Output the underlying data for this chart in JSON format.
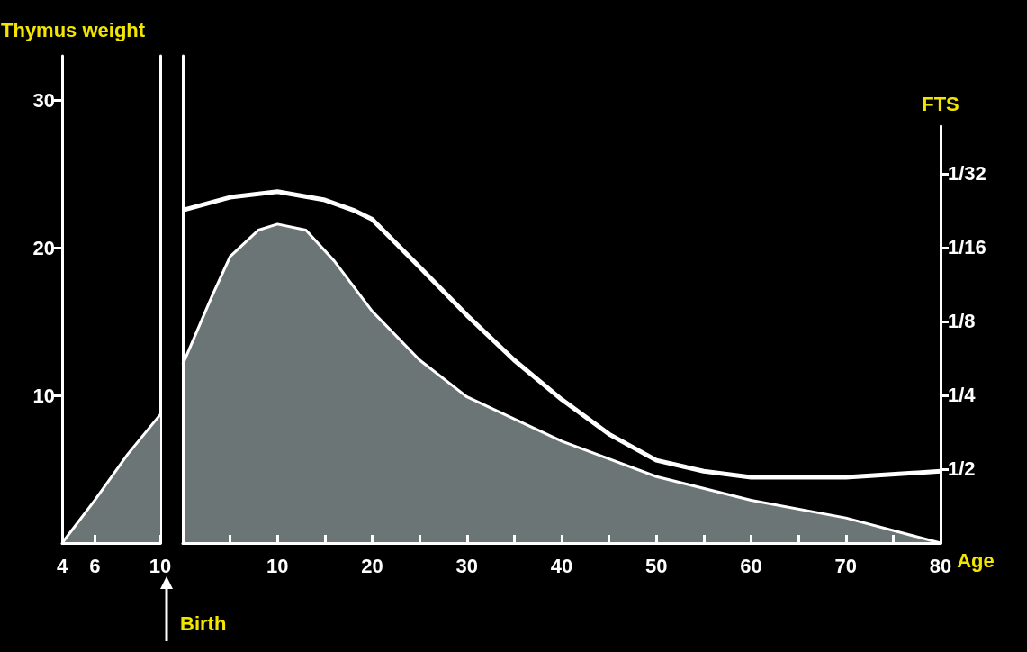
{
  "chart_data": [
    {
      "type": "area",
      "ylabel": "Thymus weight",
      "x": [
        4,
        6,
        8,
        10
      ],
      "xlim": [
        4,
        10
      ],
      "xticks": [
        4,
        6,
        10
      ],
      "ylim": [
        0,
        33
      ],
      "yticks": [
        10,
        20,
        30
      ],
      "series": [
        {
          "color": "#6b7575",
          "values": [
            0,
            2.9,
            6,
            8.7
          ]
        }
      ]
    },
    {
      "type": "area",
      "xlabel": "Age",
      "y2label": "FTS",
      "annotations": [
        "Birth"
      ],
      "xlim": [
        0,
        80
      ],
      "xticks": [
        {
          "value": 5,
          "label": null
        },
        10,
        {
          "value": 15,
          "label": null
        },
        20,
        {
          "value": 25,
          "label": null
        },
        30,
        {
          "value": 35,
          "label": null
        },
        40,
        {
          "value": 45,
          "label": null
        },
        50,
        {
          "value": 55,
          "label": null
        },
        60,
        {
          "value": 65,
          "label": null
        },
        70,
        {
          "value": 75,
          "label": null
        },
        80
      ],
      "ylim": [
        0,
        33
      ],
      "tick_labels": [
        "x",
        "y2"
      ],
      "log": "y2",
      "y2lim": [
        1,
        0.02
      ],
      "y2ticks": [
        {
          "value": 0.5,
          "label": "1/2"
        },
        {
          "value": 0.25,
          "label": "1/4"
        },
        {
          "value": 0.125,
          "label": "1/8"
        },
        {
          "value": 0.0625,
          "label": "1/16"
        },
        {
          "value": 0.03125,
          "label": "1/32"
        }
      ],
      "series": [
        {
          "color": "#6b7575",
          "x": [
            0,
            3,
            5,
            8,
            10,
            13,
            16,
            20,
            25,
            30,
            40,
            50,
            60,
            70,
            80
          ],
          "values": [
            12.1,
            16.6,
            19.4,
            21.2,
            21.6,
            21.2,
            19.1,
            15.7,
            12.4,
            9.9,
            6.9,
            4.5,
            2.9,
            1.7,
            0
          ]
        },
        {
          "type": "line",
          "axis": "y2",
          "color": "#ffffff",
          "x": [
            0,
            5,
            10,
            15,
            18,
            20,
            25,
            30,
            35,
            40,
            45,
            50,
            55,
            60,
            70,
            80
          ],
          "values": [
            0.044,
            0.039,
            0.037,
            0.04,
            0.044,
            0.048,
            0.075,
            0.118,
            0.18,
            0.26,
            0.36,
            0.46,
            0.51,
            0.54,
            0.54,
            0.51
          ]
        }
      ]
    }
  ]
}
